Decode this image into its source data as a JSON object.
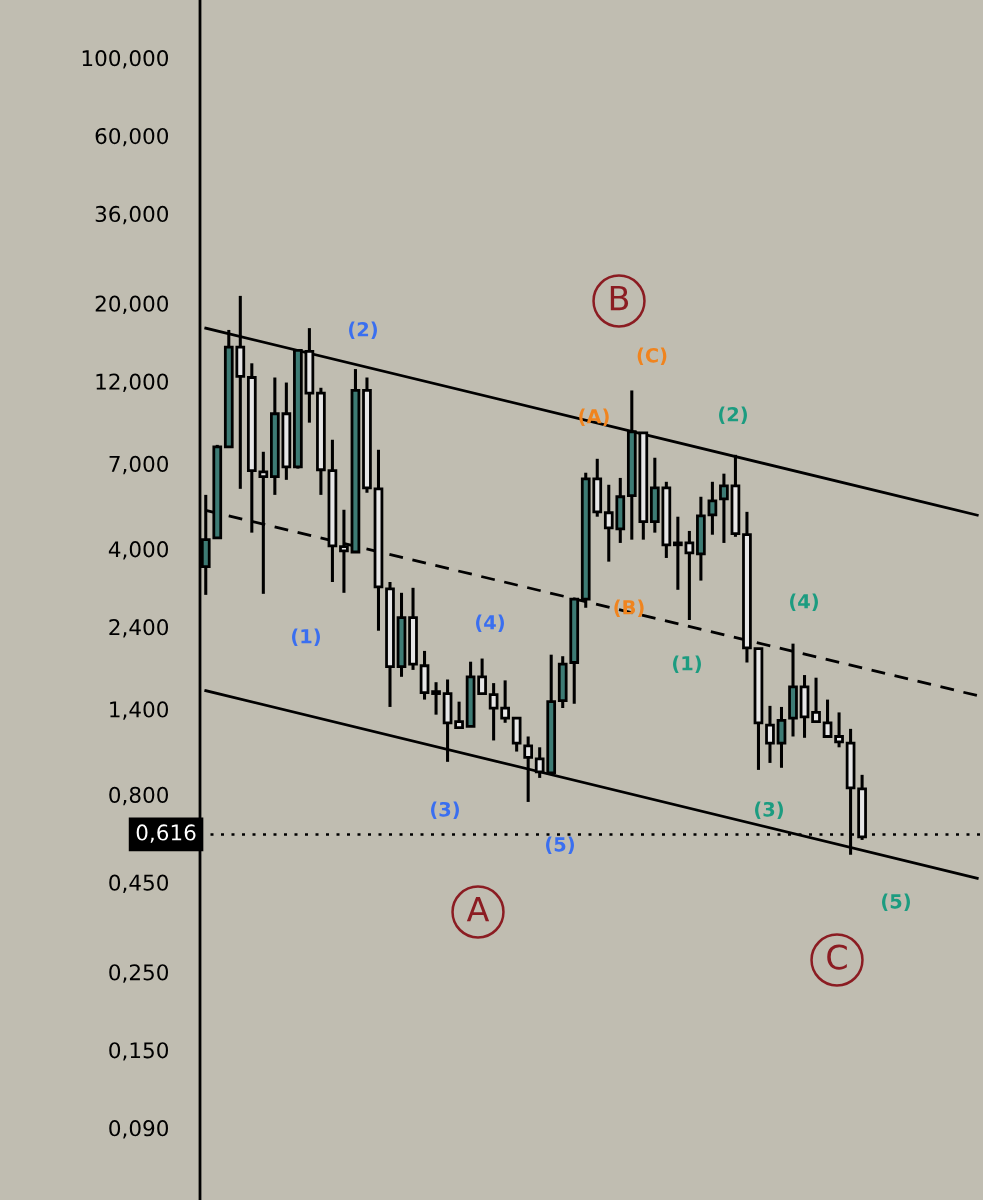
{
  "chart_data": {
    "type": "candlestick",
    "categories": [
      null,
      null,
      null,
      null,
      null,
      null,
      null,
      null,
      null,
      null,
      null,
      null,
      null,
      null,
      null,
      null,
      null,
      null,
      null,
      null,
      null,
      null,
      null,
      null,
      null,
      null,
      null,
      null,
      null,
      null,
      null,
      null,
      null,
      null,
      null,
      null,
      null,
      null,
      null,
      null,
      null,
      null,
      null,
      null,
      null,
      null,
      null,
      null,
      null,
      null,
      null,
      null,
      null,
      null,
      null,
      null,
      null,
      null,
      null,
      null,
      null,
      null,
      null,
      null,
      null,
      null,
      null,
      null
    ],
    "ohlc": [
      [
        3.56,
        5.7,
        2.96,
        4.25
      ],
      [
        4.3,
        7.91,
        4.3,
        7.81
      ],
      [
        7.81,
        16.8,
        7.81,
        15.0
      ],
      [
        15.0,
        21.0,
        5.93,
        12.4
      ],
      [
        12.3,
        13.5,
        4.45,
        6.68
      ],
      [
        6.63,
        7.56,
        2.98,
        6.42
      ],
      [
        6.42,
        12.3,
        5.7,
        9.7
      ],
      [
        9.7,
        11.9,
        6.29,
        6.85
      ],
      [
        6.85,
        14.8,
        6.77,
        14.7
      ],
      [
        14.6,
        17.0,
        9.15,
        11.1
      ],
      [
        11.1,
        11.5,
        5.7,
        6.72
      ],
      [
        6.68,
        8.18,
        3.22,
        4.08
      ],
      [
        4.06,
        5.17,
        3.0,
        3.95
      ],
      [
        3.92,
        13.0,
        3.9,
        11.3
      ],
      [
        11.3,
        12.3,
        5.78,
        5.97
      ],
      [
        5.93,
        7.66,
        2.34,
        3.12
      ],
      [
        3.08,
        3.22,
        1.42,
        1.85
      ],
      [
        1.85,
        3.0,
        1.73,
        2.55
      ],
      [
        2.55,
        3.1,
        1.81,
        1.88
      ],
      [
        1.86,
        2.05,
        1.49,
        1.56
      ],
      [
        1.57,
        1.67,
        1.35,
        1.55
      ],
      [
        1.55,
        1.7,
        0.991,
        1.28
      ],
      [
        1.29,
        1.47,
        1.24,
        1.24
      ],
      [
        1.25,
        1.91,
        1.25,
        1.73
      ],
      [
        1.73,
        1.95,
        1.54,
        1.55
      ],
      [
        1.54,
        1.66,
        1.14,
        1.41
      ],
      [
        1.41,
        1.69,
        1.28,
        1.32
      ],
      [
        1.32,
        1.32,
        1.06,
        1.12
      ],
      [
        1.1,
        1.17,
        0.762,
        1.02
      ],
      [
        1.01,
        1.09,
        0.892,
        0.928
      ],
      [
        0.922,
        2.0,
        0.91,
        1.47
      ],
      [
        1.48,
        1.98,
        1.41,
        1.88
      ],
      [
        1.9,
        2.9,
        1.45,
        2.88
      ],
      [
        2.88,
        6.59,
        2.72,
        6.33
      ],
      [
        6.33,
        7.22,
        4.94,
        5.1
      ],
      [
        5.07,
        6.09,
        3.68,
        4.59
      ],
      [
        4.56,
        6.37,
        4.16,
        5.63
      ],
      [
        5.67,
        11.3,
        4.25,
        8.62
      ],
      [
        8.56,
        8.56,
        4.25,
        4.78
      ],
      [
        4.78,
        7.27,
        4.45,
        5.97
      ],
      [
        5.97,
        6.21,
        3.77,
        4.11
      ],
      [
        4.16,
        4.94,
        3.06,
        4.11
      ],
      [
        4.16,
        4.5,
        2.51,
        3.9
      ],
      [
        3.87,
        5.63,
        3.25,
        4.97
      ],
      [
        5.0,
        6.21,
        4.39,
        5.48
      ],
      [
        5.55,
        6.55,
        4.16,
        6.05
      ],
      [
        6.05,
        7.41,
        4.33,
        4.42
      ],
      [
        4.39,
        5.1,
        1.9,
        2.09
      ],
      [
        2.08,
        2.08,
        0.94,
        1.28
      ],
      [
        1.26,
        1.43,
        0.984,
        1.12
      ],
      [
        1.12,
        1.42,
        0.953,
        1.3
      ],
      [
        1.32,
        2.15,
        1.17,
        1.62
      ],
      [
        1.62,
        1.75,
        1.16,
        1.33
      ],
      [
        1.37,
        1.72,
        1.28,
        1.29
      ],
      [
        1.28,
        1.49,
        1.16,
        1.17
      ],
      [
        1.17,
        1.37,
        1.09,
        1.13
      ],
      [
        1.12,
        1.23,
        0.539,
        0.836
      ],
      [
        0.83,
        0.91,
        0.594,
        0.606
      ],
      null,
      null,
      null,
      null,
      null,
      null,
      null,
      null,
      null,
      null
    ],
    "colors": [
      "#3d7b74",
      "#3d7b74",
      "#3d7b74",
      "#e6e6e6",
      "#e6e6e6",
      "#e6e6e6",
      "#3d7b74",
      "#e6e6e6",
      "#3d7b74",
      "#e6e6e6",
      "#e6e6e6",
      "#e6e6e6",
      "#e6e6e6",
      "#3d7b74",
      "#e6e6e6",
      "#e6e6e6",
      "#e6e6e6",
      "#3d7b74",
      "#e6e6e6",
      "#e6e6e6",
      "#e6e6e6",
      "#e6e6e6",
      "#e6e6e6",
      "#3d7b74",
      "#e6e6e6",
      "#e6e6e6",
      "#e6e6e6",
      "#e6e6e6",
      "#e6e6e6",
      "#e6e6e6",
      "#3d7b74",
      "#3d7b74",
      "#3d7b74",
      "#3d7b74",
      "#e6e6e6",
      "#e6e6e6",
      "#3d7b74",
      "#3d7b74",
      "#e6e6e6",
      "#3d7b74",
      "#e6e6e6",
      "#e6e6e6",
      "#e6e6e6",
      "#3d7b74",
      "#3d7b74",
      "#3d7b74",
      "#e6e6e6",
      "#e6e6e6",
      "#e6e6e6",
      "#e6e6e6",
      "#3d7b74",
      "#3d7b74",
      "#e6e6e6",
      "#e6e6e6",
      "#e6e6e6",
      "#e6e6e6",
      "#e6e6e6",
      "#e6e6e6",
      null,
      null,
      null,
      null,
      null,
      null,
      null,
      null,
      null,
      null
    ],
    "series": [
      {
        "type": "line",
        "color": "#000000",
        "line_style": "solid",
        "values": [
          17.0,
          null,
          null,
          null,
          null,
          null,
          null,
          null,
          null,
          null,
          null,
          null,
          null,
          null,
          null,
          null,
          null,
          null,
          null,
          null,
          null,
          null,
          null,
          null,
          null,
          null,
          null,
          null,
          null,
          null,
          null,
          null,
          null,
          null,
          null,
          null,
          null,
          null,
          null,
          null,
          null,
          null,
          null,
          null,
          null,
          null,
          null,
          null,
          null,
          null,
          null,
          null,
          null,
          null,
          null,
          null,
          null,
          null,
          null,
          null,
          null,
          null,
          null,
          null,
          null,
          null,
          null,
          4.99
        ]
      },
      {
        "type": "line",
        "color": "#000000",
        "line_style": "dashed",
        "values": [
          5.15,
          null,
          null,
          null,
          null,
          null,
          null,
          null,
          null,
          null,
          null,
          null,
          null,
          null,
          null,
          null,
          null,
          null,
          null,
          null,
          null,
          null,
          null,
          null,
          null,
          null,
          null,
          null,
          null,
          null,
          null,
          null,
          null,
          null,
          null,
          null,
          null,
          null,
          null,
          null,
          null,
          null,
          null,
          null,
          null,
          null,
          null,
          null,
          null,
          null,
          null,
          null,
          null,
          null,
          null,
          null,
          null,
          null,
          null,
          null,
          null,
          null,
          null,
          null,
          null,
          null,
          null,
          1.53
        ]
      },
      {
        "type": "line",
        "color": "#000000",
        "line_style": "solid",
        "values": [
          1.58,
          null,
          null,
          null,
          null,
          null,
          null,
          null,
          null,
          null,
          null,
          null,
          null,
          null,
          null,
          null,
          null,
          null,
          null,
          null,
          null,
          null,
          null,
          null,
          null,
          null,
          null,
          null,
          null,
          null,
          null,
          null,
          null,
          null,
          null,
          null,
          null,
          null,
          null,
          null,
          null,
          null,
          null,
          null,
          null,
          null,
          null,
          null,
          null,
          null,
          null,
          null,
          null,
          null,
          null,
          null,
          null,
          null,
          null,
          null,
          null,
          null,
          null,
          null,
          null,
          null,
          null,
          0.462
        ]
      }
    ],
    "log": "y",
    "ylim": [
      0.0561,
      146
    ],
    "yticks": [
      {
        "value": 100,
        "label": "100,000"
      },
      {
        "value": 60,
        "label": "60,000"
      },
      {
        "value": 36,
        "label": "36,000"
      },
      {
        "value": 20,
        "label": "20,000"
      },
      {
        "value": 12,
        "label": "12,000"
      },
      {
        "value": 7,
        "label": "7,000"
      },
      {
        "value": 4,
        "label": "4,000"
      },
      {
        "value": 2.4,
        "label": "2,400"
      },
      {
        "value": 1.4,
        "label": "1,400"
      },
      {
        "value": 0.8,
        "label": "0,800"
      },
      {
        "value": 0.45,
        "label": "0,450"
      },
      {
        "value": 0.25,
        "label": "0,250"
      },
      {
        "value": 0.15,
        "label": "0,150"
      },
      {
        "value": 0.09,
        "label": "0,090"
      }
    ],
    "tick_labels": "y",
    "ref_lines": [
      {
        "axis": "y",
        "value": 0.616,
        "label": "0,616",
        "color": "#000000",
        "line_style": "dotted"
      }
    ],
    "annotations": [
      "(2)",
      "(1)",
      "(4)",
      "(3)",
      "(5)",
      "(C)",
      "(A)",
      "(B)",
      "(2)",
      "(1)",
      "(4)",
      "(3)",
      "(5)",
      "A",
      "B",
      "C"
    ]
  }
}
